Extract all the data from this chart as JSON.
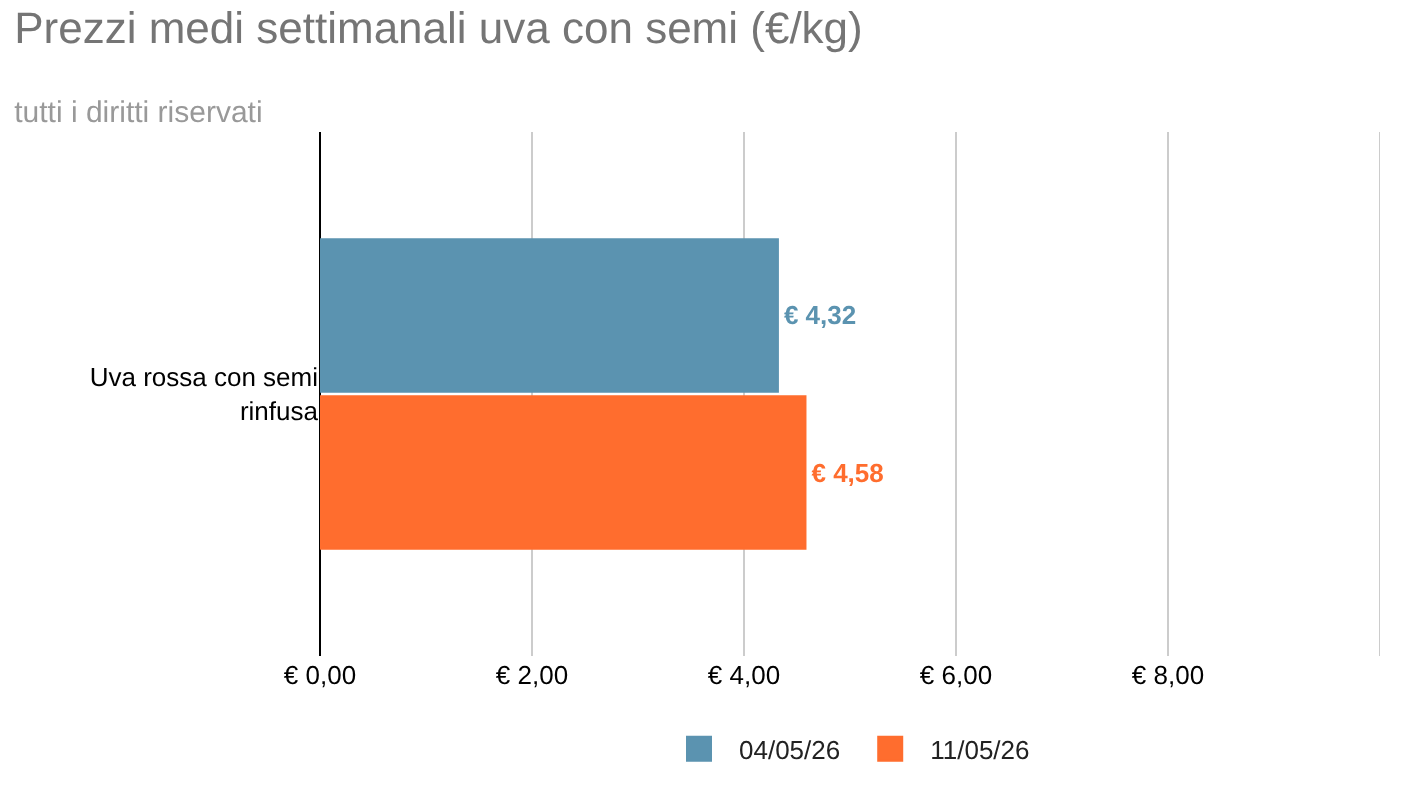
{
  "chart_data": {
    "type": "bar",
    "orientation": "horizontal",
    "title": "Prezzi medi settimanali uva con semi (€/kg)",
    "subtitle": "tutti i diritti riservati",
    "categories": [
      "Uva rossa con semi rinfusa"
    ],
    "series": [
      {
        "name": "04/05/26",
        "color": "#5b93b0",
        "values": [
          4.32
        ],
        "value_labels": [
          "€ 4,32"
        ]
      },
      {
        "name": "11/05/26",
        "color": "#ff6d2e",
        "values": [
          4.58
        ],
        "value_labels": [
          "€ 4,58"
        ]
      }
    ],
    "xlim": [
      0,
      10
    ],
    "xticks": [
      {
        "value": 0,
        "label": "€ 0,00"
      },
      {
        "value": 2,
        "label": "€ 2,00"
      },
      {
        "value": 4,
        "label": "€ 4,00"
      },
      {
        "value": 6,
        "label": "€ 6,00"
      },
      {
        "value": 8,
        "label": "€ 8,00"
      },
      {
        "value": 10,
        "label": null
      }
    ],
    "grid": "x",
    "legend": "bottom"
  }
}
